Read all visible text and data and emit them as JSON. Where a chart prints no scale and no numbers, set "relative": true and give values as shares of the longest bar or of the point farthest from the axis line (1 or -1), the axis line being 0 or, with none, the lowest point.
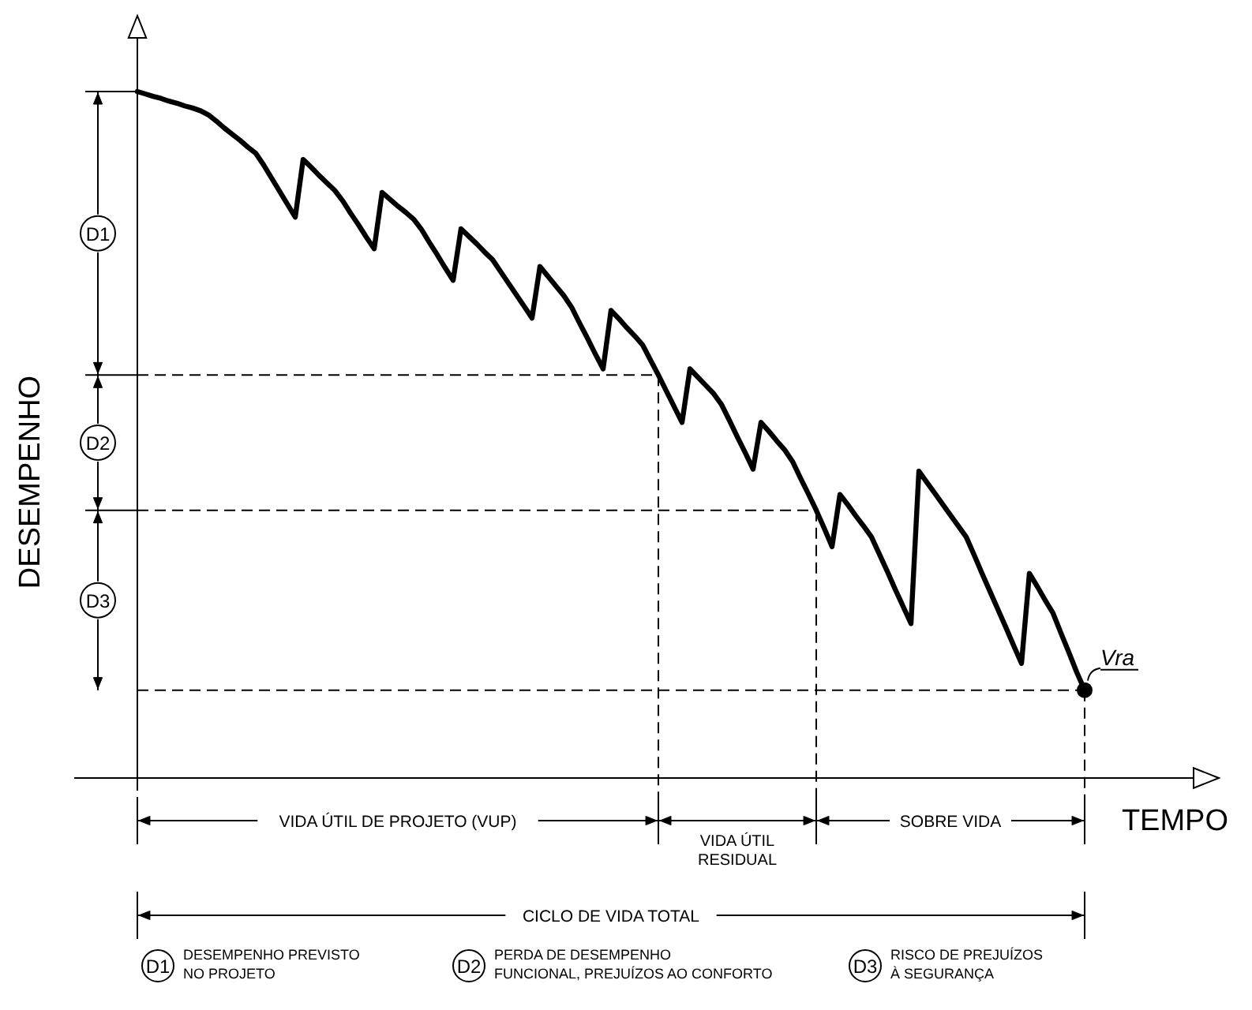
{
  "chart_data": {
    "type": "line",
    "relative": true,
    "xlabel": "TEMPO",
    "ylabel": "DESEMPENHO",
    "categories": [
      null,
      null,
      null,
      null,
      null,
      null,
      null,
      null,
      null,
      null,
      null,
      null,
      null,
      null,
      null,
      null,
      null,
      null,
      null,
      null,
      null,
      null,
      null,
      null,
      null,
      null,
      null,
      null,
      null,
      null,
      null,
      null,
      null,
      null,
      null,
      null,
      null,
      null,
      null,
      null,
      null,
      null,
      null,
      null,
      null,
      null,
      null,
      null,
      null,
      null,
      null,
      null,
      null,
      null,
      null,
      null,
      null,
      null,
      null,
      null,
      null,
      null,
      null,
      null,
      null,
      null,
      null,
      null,
      null,
      null,
      null,
      null,
      null,
      null,
      null,
      null,
      null,
      null,
      null,
      null,
      null,
      null,
      null,
      null,
      null,
      null,
      null,
      null,
      null,
      null,
      null,
      null,
      null,
      null,
      null,
      null,
      null,
      null,
      null,
      null,
      null,
      null,
      null,
      null,
      null,
      null,
      null,
      null,
      null,
      null,
      null,
      null,
      null,
      null,
      null,
      null,
      null,
      null,
      null,
      null,
      null
    ],
    "series": [
      {
        "color": "#000000",
        "values": [
          1,
          0.9965,
          0.993,
          0.99,
          0.986,
          0.983,
          0.979,
          0.976,
          0.972,
          0.966,
          0.957,
          0.947,
          0.938,
          0.929,
          0.919,
          0.91,
          0.893,
          0.874,
          0.855,
          0.836,
          0.817,
          0.901,
          0.89,
          0.878,
          0.867,
          0.856,
          0.841,
          0.823,
          0.806,
          0.788,
          0.771,
          0.853,
          0.843,
          0.833,
          0.824,
          0.814,
          0.799,
          0.78,
          0.762,
          0.743,
          0.725,
          0.8,
          0.789,
          0.778,
          0.766,
          0.755,
          0.738,
          0.721,
          0.704,
          0.687,
          0.67,
          0.745,
          0.731,
          0.717,
          0.703,
          0.686,
          0.663,
          0.641,
          0.618,
          0.596,
          0.681,
          0.669,
          0.656,
          0.644,
          0.631,
          0.609,
          0.587,
          0.564,
          0.541,
          0.518,
          0.596,
          0.584,
          0.572,
          0.56,
          0.544,
          0.521,
          0.497,
          0.474,
          0.45,
          0.518,
          0.505,
          0.491,
          0.478,
          0.461,
          0.437,
          0.414,
          0.39,
          0.364,
          0.337,
          0.413,
          0.398,
          0.382,
          0.367,
          0.351,
          0.326,
          0.301,
          0.275,
          0.25,
          0.225,
          0.447,
          0.431,
          0.415,
          0.399,
          0.383,
          0.367,
          0.351,
          0.325,
          0.298,
          0.272,
          0.246,
          0.22,
          0.193,
          0.167,
          0.298,
          0.279,
          0.259,
          0.24,
          0.211,
          0.183,
          0.154,
          0.128
        ]
      }
    ],
    "ref_lines": [
      {
        "axis": "y",
        "value": 0.587,
        "line_style": "dashed"
      },
      {
        "axis": "y",
        "value": 0.39,
        "line_style": "dashed"
      },
      {
        "axis": "y",
        "value": 0.128,
        "line_style": "dashed"
      }
    ],
    "annotations": [
      "Vra",
      "D1",
      "D2",
      "D3",
      "VIDA ÚTIL DE PROJETO (VUP)",
      "VIDA ÚTIL\nRESIDUAL",
      "SOBRE VIDA",
      "CICLO DE VIDA TOTAL",
      "DESEMPENHO PREVISTO\nNO PROJETO",
      "PERDA DE DESEMPENHO\nFUNCIONAL, PREJUÍZOS AO CONFORTO",
      "RISCO DE PREJUÍZOS\nÀ SEGURANÇA"
    ]
  }
}
